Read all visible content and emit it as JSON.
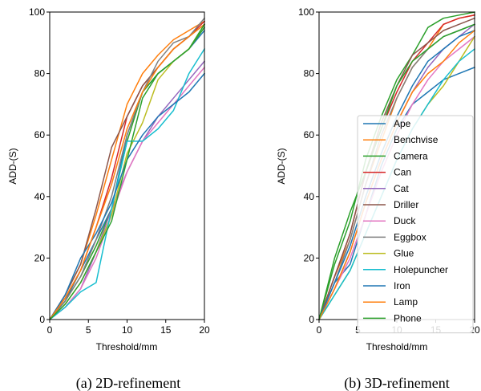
{
  "chart_data": [
    {
      "type": "line",
      "caption": "(a) 2D-refinement",
      "xlabel": "Threshold/mm",
      "ylabel": "ADD-(S)",
      "xlim": [
        0,
        20
      ],
      "ylim": [
        0,
        100
      ],
      "xticks": [
        "0",
        "5",
        "10",
        "15",
        "20"
      ],
      "yticks": [
        "0",
        "20",
        "40",
        "60",
        "80",
        "100"
      ],
      "grid": false,
      "legend": null,
      "series": [
        {
          "name": "Ape",
          "color": "#1f77b4",
          "x": [
            0,
            2,
            4,
            6,
            8,
            10,
            12,
            14,
            16,
            18,
            20
          ],
          "y": [
            0,
            6,
            16,
            26,
            36,
            60,
            74,
            80,
            84,
            88,
            94
          ]
        },
        {
          "name": "Benchvise",
          "color": "#ff7f0e",
          "x": [
            0,
            2,
            4,
            6,
            8,
            10,
            12,
            14,
            16,
            18,
            20
          ],
          "y": [
            0,
            8,
            18,
            34,
            52,
            70,
            80,
            86,
            91,
            94,
            97
          ]
        },
        {
          "name": "Camera",
          "color": "#2ca02c",
          "x": [
            0,
            2,
            4,
            6,
            8,
            10,
            12,
            14,
            16,
            18,
            20
          ],
          "y": [
            0,
            6,
            14,
            24,
            36,
            58,
            74,
            80,
            84,
            88,
            95
          ]
        },
        {
          "name": "Can",
          "color": "#d62728",
          "x": [
            0,
            2,
            4,
            6,
            8,
            10,
            12,
            14,
            16,
            18,
            20
          ],
          "y": [
            0,
            7,
            16,
            30,
            46,
            66,
            76,
            82,
            88,
            92,
            97
          ]
        },
        {
          "name": "Cat",
          "color": "#9467bd",
          "x": [
            0,
            2,
            4,
            6,
            8,
            10,
            12,
            14,
            16,
            18,
            20
          ],
          "y": [
            0,
            4,
            10,
            22,
            36,
            48,
            58,
            66,
            72,
            78,
            84
          ]
        },
        {
          "name": "Driller",
          "color": "#8c564b",
          "x": [
            0,
            2,
            4,
            6,
            8,
            10,
            12,
            14,
            16,
            18,
            20
          ],
          "y": [
            0,
            8,
            18,
            36,
            56,
            66,
            76,
            82,
            88,
            92,
            96
          ]
        },
        {
          "name": "Duck",
          "color": "#e377c2",
          "x": [
            0,
            2,
            4,
            6,
            8,
            10,
            12,
            14,
            16,
            18,
            20
          ],
          "y": [
            0,
            4,
            10,
            20,
            34,
            48,
            58,
            64,
            70,
            76,
            82
          ]
        },
        {
          "name": "Eggbox",
          "color": "#7f7f7f",
          "x": [
            0,
            2,
            4,
            6,
            8,
            10,
            12,
            14,
            16,
            18,
            20
          ],
          "y": [
            0,
            6,
            14,
            26,
            40,
            60,
            74,
            84,
            90,
            92,
            98
          ]
        },
        {
          "name": "Glue",
          "color": "#bcbd22",
          "x": [
            0,
            2,
            4,
            6,
            8,
            10,
            12,
            14,
            16,
            18,
            20
          ],
          "y": [
            0,
            5,
            12,
            22,
            34,
            54,
            64,
            78,
            84,
            88,
            96
          ]
        },
        {
          "name": "Holepuncher",
          "color": "#17becf",
          "x": [
            0,
            2,
            4,
            6,
            8,
            10,
            12,
            14,
            16,
            18,
            20
          ],
          "y": [
            0,
            4,
            9,
            12,
            36,
            58,
            58,
            62,
            68,
            80,
            88
          ]
        },
        {
          "name": "Iron",
          "color": "#1f77b4",
          "x": [
            0,
            2,
            4,
            6,
            8,
            10,
            12,
            14,
            16,
            18,
            20
          ],
          "y": [
            0,
            8,
            20,
            28,
            38,
            52,
            60,
            66,
            70,
            74,
            80
          ]
        },
        {
          "name": "Lamp",
          "color": "#ff7f0e",
          "x": [
            0,
            2,
            4,
            6,
            8,
            10,
            12,
            14,
            16,
            18,
            20
          ],
          "y": [
            0,
            7,
            16,
            30,
            44,
            62,
            74,
            82,
            88,
            92,
            96
          ]
        },
        {
          "name": "Phone",
          "color": "#2ca02c",
          "x": [
            0,
            2,
            4,
            6,
            8,
            10,
            12,
            14,
            16,
            18,
            20
          ],
          "y": [
            0,
            5,
            12,
            22,
            32,
            52,
            72,
            80,
            84,
            88,
            96
          ]
        }
      ]
    },
    {
      "type": "line",
      "caption": "(b) 3D-refinement",
      "xlabel": "Threshold/mm",
      "ylabel": "ADD-(S)",
      "xlim": [
        0,
        20
      ],
      "ylim": [
        0,
        100
      ],
      "xticks": [
        "0",
        "5",
        "10",
        "15",
        "20"
      ],
      "yticks": [
        "0",
        "20",
        "40",
        "60",
        "80",
        "100"
      ],
      "grid": false,
      "legend": "center-right",
      "series": [
        {
          "name": "Ape",
          "color": "#1f77b4",
          "x": [
            0,
            2,
            4,
            6,
            8,
            10,
            12,
            14,
            16,
            18,
            20
          ],
          "y": [
            0,
            12,
            18,
            34,
            50,
            62,
            70,
            74,
            78,
            80,
            82
          ]
        },
        {
          "name": "Benchvise",
          "color": "#ff7f0e",
          "x": [
            0,
            2,
            4,
            6,
            8,
            10,
            12,
            14,
            16,
            18,
            20
          ],
          "y": [
            0,
            14,
            26,
            44,
            58,
            72,
            82,
            88,
            96,
            98,
            99
          ]
        },
        {
          "name": "Camera",
          "color": "#2ca02c",
          "x": [
            0,
            2,
            4,
            6,
            8,
            10,
            12,
            14,
            16,
            18,
            20
          ],
          "y": [
            0,
            18,
            32,
            52,
            66,
            78,
            86,
            95,
            98,
            99,
            100
          ]
        },
        {
          "name": "Can",
          "color": "#d62728",
          "x": [
            0,
            2,
            4,
            6,
            8,
            10,
            12,
            14,
            16,
            18,
            20
          ],
          "y": [
            0,
            14,
            28,
            48,
            62,
            74,
            84,
            90,
            96,
            98,
            99
          ]
        },
        {
          "name": "Cat",
          "color": "#9467bd",
          "x": [
            0,
            2,
            4,
            6,
            8,
            10,
            12,
            14,
            16,
            18,
            20
          ],
          "y": [
            0,
            10,
            22,
            38,
            52,
            64,
            74,
            82,
            88,
            92,
            96
          ]
        },
        {
          "name": "Driller",
          "color": "#8c564b",
          "x": [
            0,
            2,
            4,
            6,
            8,
            10,
            12,
            14,
            16,
            18,
            20
          ],
          "y": [
            0,
            14,
            28,
            48,
            64,
            76,
            86,
            90,
            94,
            96,
            98
          ]
        },
        {
          "name": "Duck",
          "color": "#e377c2",
          "x": [
            0,
            2,
            4,
            6,
            8,
            10,
            12,
            14,
            16,
            18,
            20
          ],
          "y": [
            0,
            10,
            20,
            34,
            48,
            60,
            70,
            78,
            84,
            88,
            92
          ]
        },
        {
          "name": "Eggbox",
          "color": "#7f7f7f",
          "x": [
            0,
            2,
            4,
            6,
            8,
            10,
            12,
            14,
            16,
            18,
            20
          ],
          "y": [
            0,
            12,
            26,
            44,
            60,
            72,
            82,
            88,
            92,
            94,
            96
          ]
        },
        {
          "name": "Glue",
          "color": "#bcbd22",
          "x": [
            0,
            2,
            4,
            6,
            8,
            10,
            12,
            14,
            16,
            18,
            20
          ],
          "y": [
            0,
            8,
            16,
            28,
            40,
            52,
            62,
            70,
            76,
            84,
            92
          ]
        },
        {
          "name": "Holepuncher",
          "color": "#17becf",
          "x": [
            0,
            2,
            4,
            6,
            8,
            10,
            12,
            14,
            16,
            18,
            20
          ],
          "y": [
            0,
            8,
            16,
            28,
            40,
            52,
            62,
            70,
            78,
            84,
            88
          ]
        },
        {
          "name": "Iron",
          "color": "#1f77b4",
          "x": [
            0,
            2,
            4,
            6,
            8,
            10,
            12,
            14,
            16,
            18,
            20
          ],
          "y": [
            0,
            12,
            24,
            40,
            54,
            66,
            76,
            84,
            88,
            92,
            94
          ]
        },
        {
          "name": "Lamp",
          "color": "#ff7f0e",
          "x": [
            0,
            2,
            4,
            6,
            8,
            10,
            12,
            14,
            16,
            18,
            20
          ],
          "y": [
            0,
            10,
            22,
            38,
            52,
            64,
            74,
            80,
            84,
            90,
            94
          ]
        },
        {
          "name": "Phone",
          "color": "#2ca02c",
          "x": [
            0,
            2,
            4,
            6,
            8,
            10,
            12,
            14,
            16,
            18,
            20
          ],
          "y": [
            0,
            20,
            35,
            48,
            62,
            76,
            84,
            88,
            92,
            94,
            96
          ]
        }
      ]
    }
  ]
}
